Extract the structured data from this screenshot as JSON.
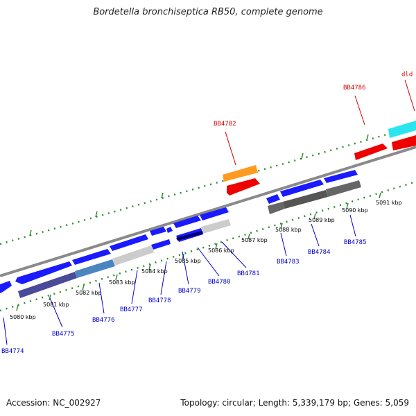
{
  "title": "Bordetella bronchiseptica RB50, complete genome",
  "footer": {
    "accession": "Accession: NC_002927",
    "summary": "Topology: circular; Length: 5,339,179 bp; Genes: 5,059"
  },
  "colors": {
    "gene_blue": "#1a1aff",
    "backbone": "#8a8a8a",
    "ticks": "#2e8b2e",
    "label_blue": "#0000cc",
    "label_red": "#d40000"
  },
  "tick_labels": [
    "5080 kbp",
    "5081 kbp",
    "5082 kbp",
    "5083 kbp",
    "5084 kbp",
    "5085 kbp",
    "5086 kbp",
    "5087 kbp",
    "5088 kbp",
    "5089 kbp",
    "5090 kbp",
    "5091 kbp"
  ],
  "gene_labels": [
    "BB4774",
    "BB4775",
    "BB4776",
    "BB4777",
    "BB4778",
    "BB4779",
    "BB4780",
    "BB4781",
    "BB4783",
    "BB4784",
    "BB4785"
  ],
  "feature_labels": [
    "BB4782",
    "BB4786",
    "dld"
  ]
}
